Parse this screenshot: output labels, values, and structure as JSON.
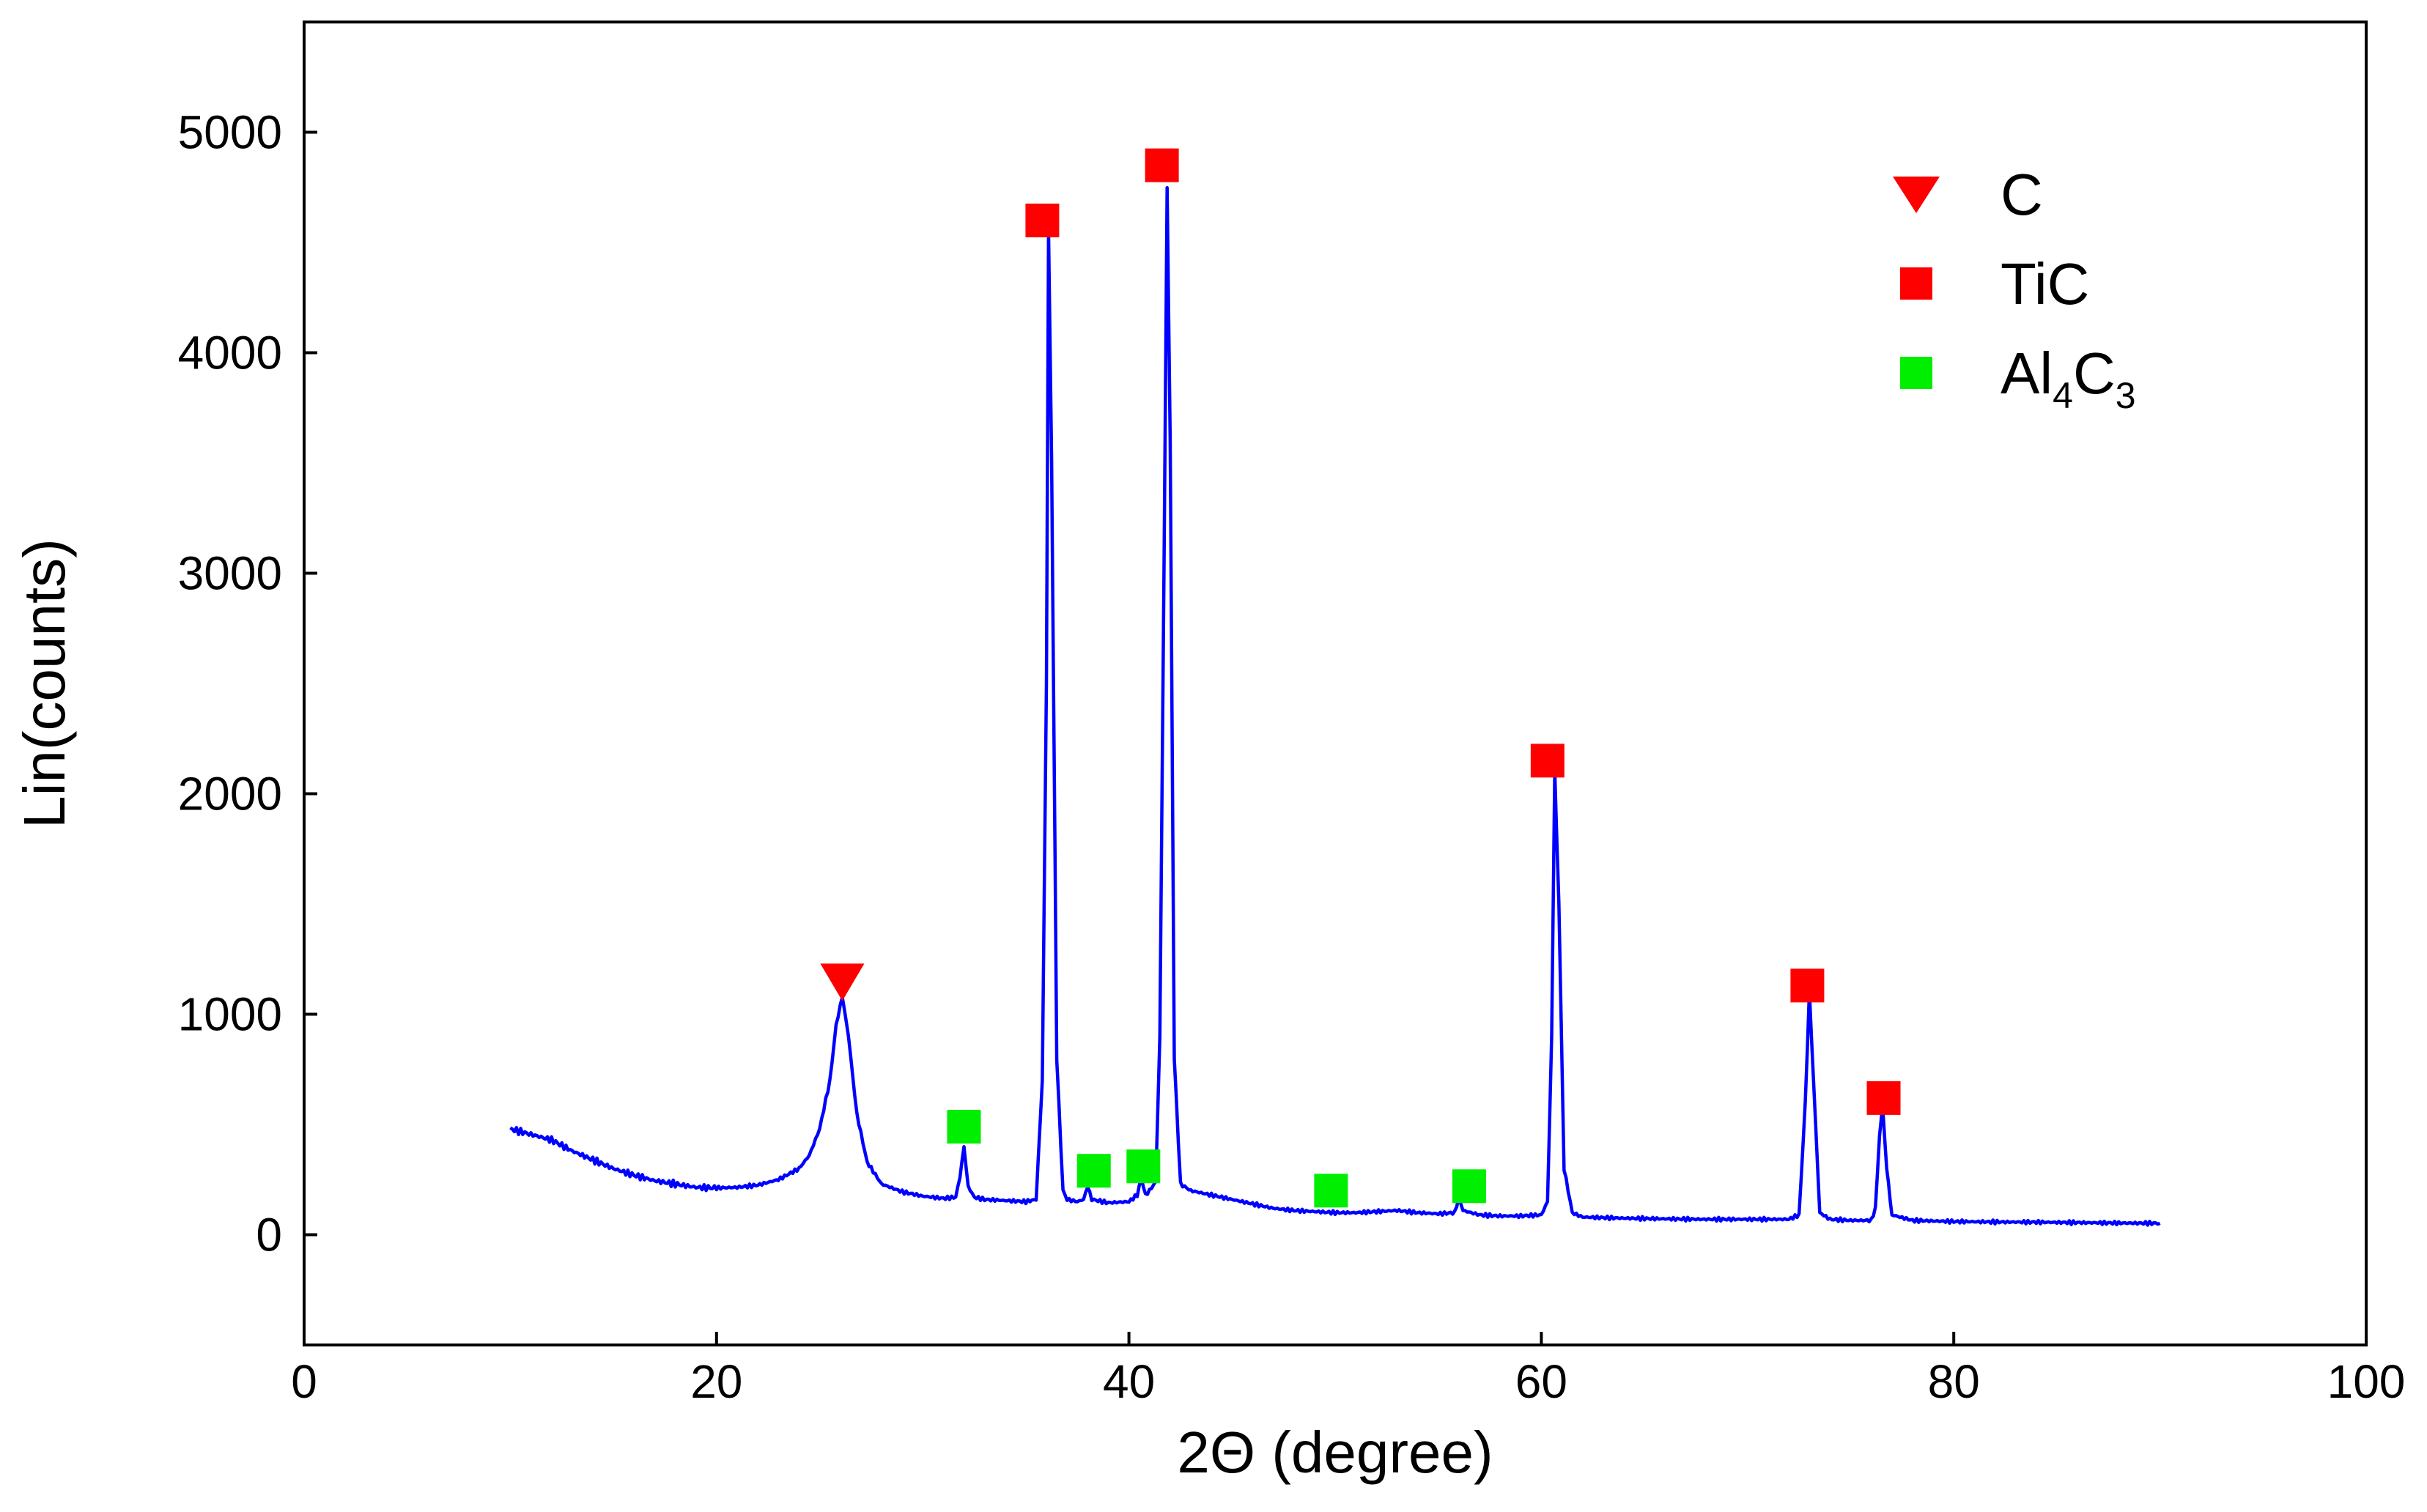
{
  "chart_data": {
    "type": "line",
    "xlabel": "2Θ (degree)",
    "ylabel": "Lin(counts)",
    "xlim": [
      0,
      100
    ],
    "ylim": [
      -500,
      5500
    ],
    "x_ticks": [
      0,
      20,
      40,
      60,
      80,
      100
    ],
    "y_ticks": [
      0,
      1000,
      2000,
      3000,
      4000,
      5000
    ],
    "grid": false,
    "legend_position": "top-right",
    "series": [
      {
        "color": "#0000ff",
        "points": [
          [
            10,
            480
          ],
          [
            11,
            455
          ],
          [
            12,
            430
          ],
          [
            13,
            380
          ],
          [
            14,
            340
          ],
          [
            15,
            300
          ],
          [
            16,
            270
          ],
          [
            17,
            245
          ],
          [
            18,
            230
          ],
          [
            19,
            215
          ],
          [
            20,
            212
          ],
          [
            21,
            215
          ],
          [
            22,
            225
          ],
          [
            23,
            250
          ],
          [
            24,
            300
          ],
          [
            24.5,
            360
          ],
          [
            25,
            480
          ],
          [
            25.5,
            700
          ],
          [
            25.8,
            950
          ],
          [
            26.1,
            1080
          ],
          [
            26.4,
            900
          ],
          [
            26.8,
            550
          ],
          [
            27.3,
            330
          ],
          [
            28,
            230
          ],
          [
            29,
            195
          ],
          [
            30,
            175
          ],
          [
            31,
            165
          ],
          [
            31.6,
            170
          ],
          [
            31.8,
            260
          ],
          [
            32,
            400
          ],
          [
            32.2,
            220
          ],
          [
            32.5,
            170
          ],
          [
            33,
            160
          ],
          [
            34,
            155
          ],
          [
            35,
            150
          ],
          [
            35.5,
            160
          ],
          [
            35.8,
            700
          ],
          [
            36,
            2500
          ],
          [
            36.1,
            4550
          ],
          [
            36.25,
            3500
          ],
          [
            36.5,
            800
          ],
          [
            36.8,
            200
          ],
          [
            37,
            160
          ],
          [
            37.5,
            150
          ],
          [
            37.8,
            160
          ],
          [
            38,
            220
          ],
          [
            38.2,
            160
          ],
          [
            39,
            145
          ],
          [
            40,
            150
          ],
          [
            40.4,
            180
          ],
          [
            40.6,
            260
          ],
          [
            40.8,
            180
          ],
          [
            41,
            200
          ],
          [
            41.3,
            240
          ],
          [
            41.5,
            900
          ],
          [
            41.7,
            3000
          ],
          [
            41.85,
            4750
          ],
          [
            42,
            3600
          ],
          [
            42.2,
            800
          ],
          [
            42.5,
            230
          ],
          [
            43,
            200
          ],
          [
            44,
            180
          ],
          [
            45,
            160
          ],
          [
            46,
            140
          ],
          [
            47,
            120
          ],
          [
            48,
            110
          ],
          [
            49,
            105
          ],
          [
            50,
            100
          ],
          [
            51,
            100
          ],
          [
            52,
            105
          ],
          [
            53,
            110
          ],
          [
            54,
            100
          ],
          [
            55,
            95
          ],
          [
            55.8,
            100
          ],
          [
            56,
            170
          ],
          [
            56.2,
            110
          ],
          [
            57,
            90
          ],
          [
            58,
            85
          ],
          [
            59,
            85
          ],
          [
            60,
            90
          ],
          [
            60.3,
            150
          ],
          [
            60.5,
            900
          ],
          [
            60.65,
            2100
          ],
          [
            60.85,
            1500
          ],
          [
            61.1,
            300
          ],
          [
            61.5,
            100
          ],
          [
            62,
            80
          ],
          [
            64,
            75
          ],
          [
            66,
            72
          ],
          [
            68,
            70
          ],
          [
            70,
            70
          ],
          [
            72,
            70
          ],
          [
            72.5,
            90
          ],
          [
            72.8,
            600
          ],
          [
            73,
            1100
          ],
          [
            73.2,
            700
          ],
          [
            73.5,
            100
          ],
          [
            74,
            70
          ],
          [
            75,
            65
          ],
          [
            76,
            65
          ],
          [
            76.2,
            120
          ],
          [
            76.4,
            450
          ],
          [
            76.55,
            580
          ],
          [
            76.75,
            300
          ],
          [
            77,
            90
          ],
          [
            78,
            65
          ],
          [
            80,
            60
          ],
          [
            82,
            58
          ],
          [
            84,
            57
          ],
          [
            86,
            55
          ],
          [
            88,
            53
          ],
          [
            90,
            52
          ]
        ]
      }
    ],
    "markers": [
      {
        "phase": "C",
        "shape": "triangle-down",
        "color": "#ff0000",
        "x": 26.1,
        "y": 1150
      },
      {
        "phase": "TiC",
        "shape": "square",
        "color": "#ff0000",
        "x": 35.8,
        "y": 4600
      },
      {
        "phase": "TiC",
        "shape": "square",
        "color": "#ff0000",
        "x": 41.6,
        "y": 4850
      },
      {
        "phase": "TiC",
        "shape": "square",
        "color": "#ff0000",
        "x": 60.3,
        "y": 2150
      },
      {
        "phase": "TiC",
        "shape": "square",
        "color": "#ff0000",
        "x": 72.9,
        "y": 1130
      },
      {
        "phase": "TiC",
        "shape": "square",
        "color": "#ff0000",
        "x": 76.6,
        "y": 620
      },
      {
        "phase": "Al4C3",
        "shape": "square",
        "color": "#00ee00",
        "x": 32.0,
        "y": 490
      },
      {
        "phase": "Al4C3",
        "shape": "square",
        "color": "#00ee00",
        "x": 38.3,
        "y": 290
      },
      {
        "phase": "Al4C3",
        "shape": "square",
        "color": "#00ee00",
        "x": 40.7,
        "y": 310
      },
      {
        "phase": "Al4C3",
        "shape": "square",
        "color": "#00ee00",
        "x": 49.8,
        "y": 200
      },
      {
        "phase": "Al4C3",
        "shape": "square",
        "color": "#00ee00",
        "x": 56.5,
        "y": 220
      }
    ],
    "legend": [
      {
        "label": "C",
        "label_sub": [],
        "shape": "triangle-down",
        "color": "#ff0000"
      },
      {
        "label": "TiC",
        "label_sub": [],
        "shape": "square",
        "color": "#ff0000"
      },
      {
        "label": "Al",
        "label_sub": [
          "4",
          "C",
          "3"
        ],
        "shape": "square",
        "color": "#00ee00"
      }
    ]
  }
}
